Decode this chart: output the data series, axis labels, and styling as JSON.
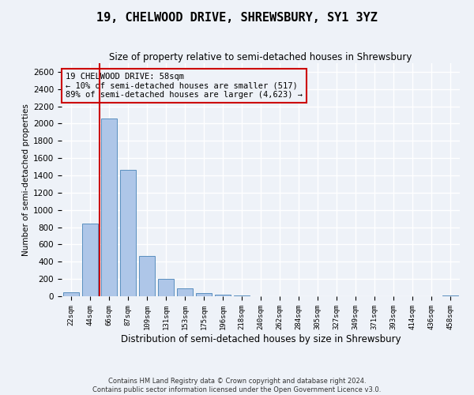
{
  "title": "19, CHELWOOD DRIVE, SHREWSBURY, SY1 3YZ",
  "subtitle": "Size of property relative to semi-detached houses in Shrewsbury",
  "xlabel": "Distribution of semi-detached houses by size in Shrewsbury",
  "ylabel": "Number of semi-detached properties",
  "footer_line1": "Contains HM Land Registry data © Crown copyright and database right 2024.",
  "footer_line2": "Contains public sector information licensed under the Open Government Licence v3.0.",
  "annotation_title": "19 CHELWOOD DRIVE: 58sqm",
  "annotation_line1": "← 10% of semi-detached houses are smaller (517)",
  "annotation_line2": "89% of semi-detached houses are larger (4,623) →",
  "bar_labels": [
    "22sqm",
    "44sqm",
    "66sqm",
    "87sqm",
    "109sqm",
    "131sqm",
    "153sqm",
    "175sqm",
    "196sqm",
    "218sqm",
    "240sqm",
    "262sqm",
    "284sqm",
    "305sqm",
    "327sqm",
    "349sqm",
    "371sqm",
    "393sqm",
    "414sqm",
    "436sqm",
    "458sqm"
  ],
  "bar_values": [
    50,
    840,
    2060,
    1460,
    470,
    200,
    90,
    35,
    15,
    5,
    3,
    2,
    1,
    1,
    0,
    0,
    0,
    0,
    0,
    0,
    10
  ],
  "bar_color": "#aec6e8",
  "bar_edge_color": "#5a8fbf",
  "red_line_color": "#cc0000",
  "annotation_box_edge_color": "#cc0000",
  "background_color": "#eef2f8",
  "grid_color": "#ffffff",
  "ylim": [
    0,
    2700
  ],
  "yticks": [
    0,
    200,
    400,
    600,
    800,
    1000,
    1200,
    1400,
    1600,
    1800,
    2000,
    2200,
    2400,
    2600
  ]
}
